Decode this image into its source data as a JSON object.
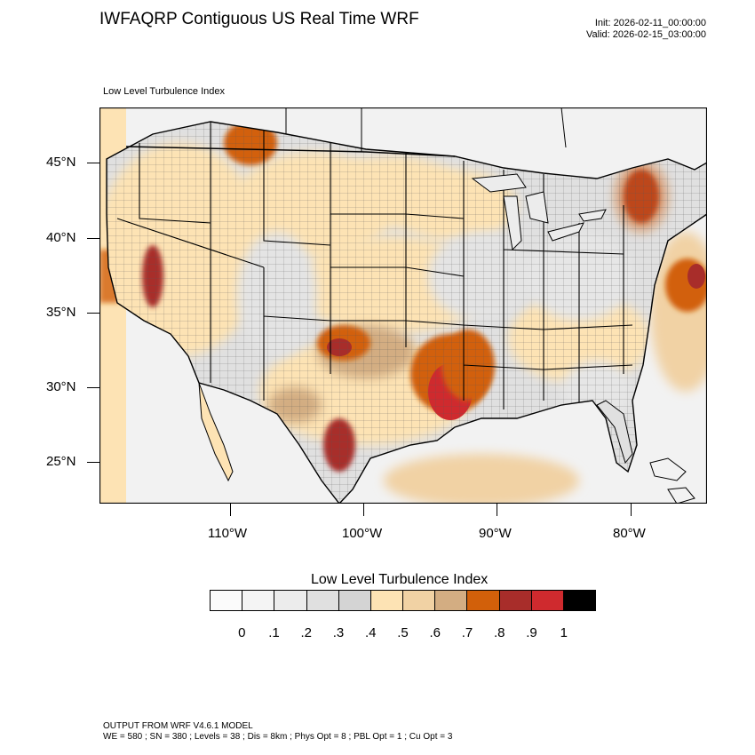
{
  "title": "IWFAQRP Contiguous US Real Time WRF",
  "init": "Init: 2026-02-11_00:00:00",
  "valid": "Valid: 2026-02-15_03:00:00",
  "map_label": "Low Level Turbulence Index",
  "lat_labels": [
    "45°N",
    "40°N",
    "35°N",
    "30°N",
    "25°N"
  ],
  "lon_labels": [
    "110°W",
    "100°W",
    "90°W",
    "80°W"
  ],
  "colorbar": {
    "title": "Low Level Turbulence Index",
    "colors": [
      "#fbfbfb",
      "#f4f4f4",
      "#ececec",
      "#e0e0e0",
      "#d4d4d4",
      "#fde3b4",
      "#f1d2a4",
      "#d3ad82",
      "#d2600a",
      "#a82d2a",
      "#cf2a2e",
      "#000000"
    ],
    "labels": [
      "0",
      ".1",
      ".2",
      ".3",
      ".4",
      ".5",
      ".6",
      ".7",
      ".8",
      ".9",
      "1"
    ]
  },
  "footer": {
    "line1": "OUTPUT FROM WRF V4.6.1 MODEL",
    "line2": "WE = 580 ; SN = 380 ; Levels = 38 ; Dis = 8km ; Phys Opt = 8 ; PBL Opt = 1 ; Cu Opt = 3"
  }
}
